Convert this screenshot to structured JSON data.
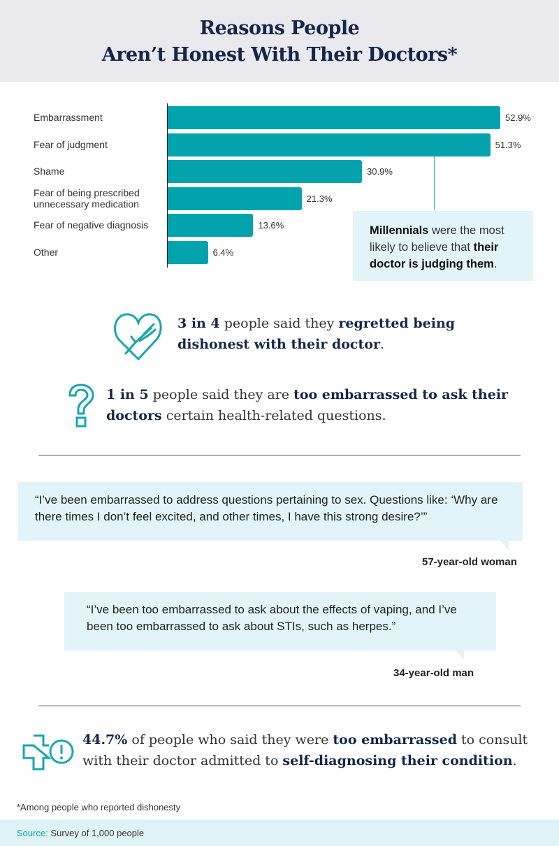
{
  "header": {
    "title_line1": "Reasons People",
    "title_line2": "Aren’t Honest With Their Doctors*"
  },
  "chart_data": {
    "type": "bar",
    "orientation": "horizontal",
    "title": "Reasons People Aren’t Honest With Their Doctors*",
    "categories": [
      "Embarrassment",
      "Fear of judgment",
      "Shame",
      "Fear of being prescribed unnecessary medication",
      "Fear of negative diagnosis",
      "Other"
    ],
    "category_lines": [
      [
        "Embarrassment"
      ],
      [
        "Fear of judgment"
      ],
      [
        "Shame"
      ],
      [
        "Fear of being prescribed",
        "unnecessary medication"
      ],
      [
        "Fear of negative diagnosis"
      ],
      [
        "Other"
      ]
    ],
    "values": [
      52.9,
      51.3,
      30.9,
      21.3,
      13.6,
      6.4
    ],
    "labels": [
      "52.9%",
      "51.3%",
      "30.9%",
      "21.3%",
      "13.6%",
      "6.4%"
    ],
    "unit": "%",
    "xlim": [
      0,
      55
    ],
    "color": "#03a3ae",
    "grid": false
  },
  "callout": {
    "b1": "Millennials",
    "t1": " were the most likely to believe that ",
    "b2": "their doctor is judging them",
    "t2": "."
  },
  "stat1": {
    "b1": "3 in 4",
    "t1": " people said they ",
    "b2": "regretted being dishonest with their doctor",
    "t2": "."
  },
  "stat2": {
    "b1": "1 in 5",
    "t1": " people said they are ",
    "b2": "too embarrassed to ask their doctors",
    "t2": " certain health-related questions."
  },
  "quotes": [
    {
      "text": "“I’ve been embarrassed to address questions pertaining to sex. Questions like: ‘Why are there times I don’t feel excited, and other times, I have this strong desire?’”",
      "who": "57-year-old woman"
    },
    {
      "text": "“I’ve been too embarrassed to ask about the effects of vaping, and I’ve been too embarrassed to ask about STIs, such as herpes.”",
      "who": "34-year-old man"
    }
  ],
  "stat3": {
    "b1": "44.7%",
    "t1": " of people who said they were ",
    "b2": "too embarrassed",
    "t2": " to consult with their doctor admitted to ",
    "b3": "self-diagnosing their condition",
    "t3": "."
  },
  "footnote": "*Among people who reported dishonesty",
  "source": {
    "label": "Source:",
    "text": " Survey of 1,000 people"
  }
}
